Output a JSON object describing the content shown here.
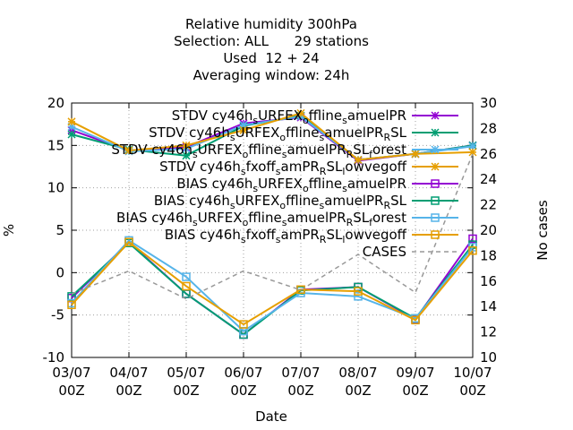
{
  "chart_data": {
    "type": "line",
    "title_lines": [
      "Relative humidity 300hPa",
      "Selection: ALL      29 stations",
      "Used  12 + 24",
      "Averaging window: 24h"
    ],
    "xlabel": "Date",
    "ylabel": "%",
    "y2label": "No cases",
    "categories": [
      "03/07\n00Z",
      "04/07\n00Z",
      "05/07\n00Z",
      "06/07\n00Z",
      "07/07\n00Z",
      "08/07\n00Z",
      "09/07\n00Z",
      "10/07\n00Z"
    ],
    "ylim": [
      -10,
      20
    ],
    "yticks": [
      -10,
      -5,
      0,
      5,
      10,
      15,
      20
    ],
    "y2lim": [
      10,
      30
    ],
    "y2ticks": [
      10,
      12,
      14,
      16,
      18,
      20,
      22,
      24,
      26,
      28,
      30
    ],
    "grid": true,
    "legend_position": "top-right",
    "series": [
      {
        "name": "STDV cy46h_sURFEX_offline_samuelPR",
        "kind": "stdv",
        "color": "#9400d3",
        "values": [
          16.8,
          14.4,
          14.8,
          17.6,
          18.3,
          13.2,
          14.0,
          15.0
        ]
      },
      {
        "name": "STDV cy46h_sURFEX_offline_samuelPR_RSL",
        "kind": "stdv",
        "color": "#009e73",
        "values": [
          16.3,
          14.5,
          13.8,
          17.3,
          18.5,
          13.3,
          14.0,
          15.0
        ]
      },
      {
        "name": "STDV cy46h_sURFEX_offline_samuelPR_RSL_forest",
        "kind": "stdv",
        "color": "#56b4e9",
        "values": [
          17.2,
          14.3,
          14.6,
          17.4,
          18.4,
          13.3,
          14.0,
          14.9
        ]
      },
      {
        "name": "STDV cy46h_sfxoff_samPR_RSL_lowvegoff",
        "kind": "stdv",
        "color": "#e69f00",
        "values": [
          17.8,
          14.4,
          15.0,
          16.8,
          18.8,
          13.3,
          14.0,
          14.2
        ]
      },
      {
        "name": "BIAS cy46h_sURFEX_offline_samuelPR",
        "kind": "bias",
        "color": "#9400d3",
        "values": [
          -3.0,
          3.6,
          -2.5,
          -7.3,
          -2.0,
          -1.7,
          -5.5,
          4.0
        ]
      },
      {
        "name": "BIAS cy46h_sURFEX_offline_samuelPR_RSL",
        "kind": "bias",
        "color": "#009e73",
        "values": [
          -2.8,
          3.5,
          -2.5,
          -7.3,
          -2.1,
          -1.7,
          -5.4,
          3.3
        ]
      },
      {
        "name": "BIAS cy46h_sURFEX_offline_samuelPR_RSL_forest",
        "kind": "bias",
        "color": "#56b4e9",
        "values": [
          -3.6,
          3.8,
          -0.5,
          -6.9,
          -2.4,
          -2.8,
          -5.4,
          3.0
        ]
      },
      {
        "name": "BIAS cy46h_sfxoff_samPR_RSL_lowvegoff",
        "kind": "bias",
        "color": "#e69f00",
        "values": [
          -3.8,
          3.6,
          -1.6,
          -6.1,
          -2.0,
          -2.2,
          -5.6,
          2.6
        ]
      },
      {
        "name": "CASES",
        "kind": "cases",
        "color": "#999999",
        "axis": "y2",
        "values": [
          15.0,
          16.8,
          14.6,
          16.8,
          15.3,
          18.1,
          15.1,
          26.0
        ]
      }
    ],
    "legend_labels": [
      {
        "prefix": "STDV cy46h",
        "parts": [
          [
            "s",
            "sub"
          ],
          [
            "URFEX",
            ""
          ],
          [
            "o",
            "sub"
          ],
          [
            "ffline",
            ""
          ],
          [
            "s",
            "sub"
          ],
          [
            "amuelPR",
            ""
          ]
        ]
      },
      {
        "prefix": "STDV cy46h",
        "parts": [
          [
            "s",
            "sub"
          ],
          [
            "URFEX",
            ""
          ],
          [
            "o",
            "sub"
          ],
          [
            "ffline",
            ""
          ],
          [
            "s",
            "sub"
          ],
          [
            "amuelPR",
            ""
          ],
          [
            "R",
            "sub"
          ],
          [
            "SL",
            ""
          ]
        ]
      },
      {
        "prefix": "STDV cy46h",
        "parts": [
          [
            "s",
            "sub"
          ],
          [
            "URFEX",
            ""
          ],
          [
            "o",
            "sub"
          ],
          [
            "ffline",
            ""
          ],
          [
            "s",
            "sub"
          ],
          [
            "amuelPR",
            ""
          ],
          [
            "R",
            "sub"
          ],
          [
            "SL",
            ""
          ],
          [
            "f",
            "sub"
          ],
          [
            "orest",
            ""
          ]
        ]
      },
      {
        "prefix": "STDV cy46h",
        "parts": [
          [
            "s",
            "sub"
          ],
          [
            "fxoff",
            ""
          ],
          [
            "s",
            "sub"
          ],
          [
            "amPR",
            ""
          ],
          [
            "R",
            "sub"
          ],
          [
            "SL",
            ""
          ],
          [
            "l",
            "sub"
          ],
          [
            "owvegoff",
            ""
          ]
        ]
      },
      {
        "prefix": "BIAS cy46h",
        "parts": [
          [
            "s",
            "sub"
          ],
          [
            "URFEX",
            ""
          ],
          [
            "o",
            "sub"
          ],
          [
            "ffline",
            ""
          ],
          [
            "s",
            "sub"
          ],
          [
            "amuelPR",
            ""
          ]
        ]
      },
      {
        "prefix": "BIAS cy46h",
        "parts": [
          [
            "s",
            "sub"
          ],
          [
            "URFEX",
            ""
          ],
          [
            "o",
            "sub"
          ],
          [
            "ffline",
            ""
          ],
          [
            "s",
            "sub"
          ],
          [
            "amuelPR",
            ""
          ],
          [
            "R",
            "sub"
          ],
          [
            "SL",
            ""
          ]
        ]
      },
      {
        "prefix": "BIAS cy46h",
        "parts": [
          [
            "s",
            "sub"
          ],
          [
            "URFEX",
            ""
          ],
          [
            "o",
            "sub"
          ],
          [
            "ffline",
            ""
          ],
          [
            "s",
            "sub"
          ],
          [
            "amuelPR",
            ""
          ],
          [
            "R",
            "sub"
          ],
          [
            "SL",
            ""
          ],
          [
            "f",
            "sub"
          ],
          [
            "orest",
            ""
          ]
        ]
      },
      {
        "prefix": "BIAS cy46h",
        "parts": [
          [
            "s",
            "sub"
          ],
          [
            "fxoff",
            ""
          ],
          [
            "s",
            "sub"
          ],
          [
            "amPR",
            ""
          ],
          [
            "R",
            "sub"
          ],
          [
            "SL",
            ""
          ],
          [
            "l",
            "sub"
          ],
          [
            "owvegoff",
            ""
          ]
        ]
      },
      {
        "prefix": "CASES",
        "parts": []
      }
    ]
  }
}
